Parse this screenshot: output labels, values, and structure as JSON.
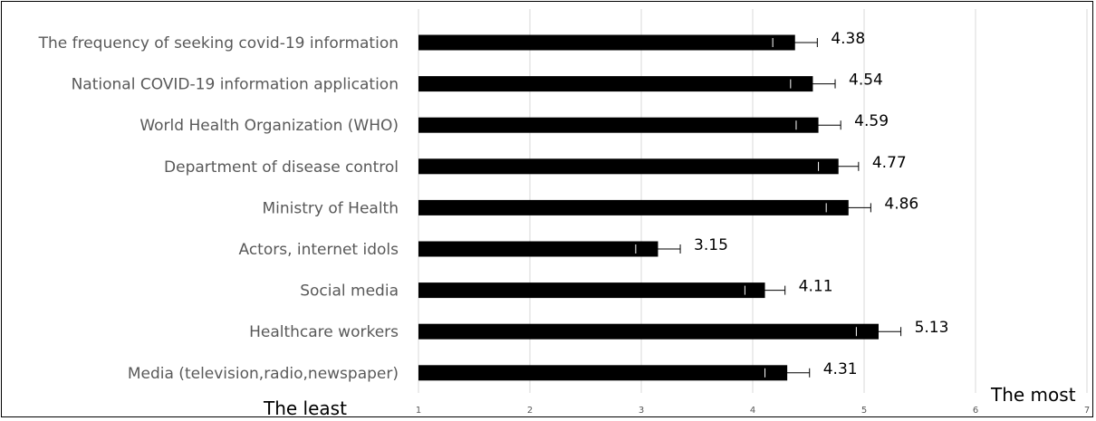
{
  "chart_data": {
    "type": "bar",
    "orientation": "horizontal",
    "categories": [
      "The frequency of seeking covid-19 information",
      "National COVID-19 information application",
      "World Health Organization (WHO)",
      "Department of disease control",
      "Ministry of Health",
      "Actors, internet idols",
      "Social media",
      "Healthcare workers",
      "Media (television,radio,newspaper)"
    ],
    "values": [
      4.38,
      4.54,
      4.59,
      4.77,
      4.86,
      3.15,
      4.11,
      5.13,
      4.31
    ],
    "value_labels": [
      "4.38",
      "4.54",
      "4.59",
      "4.77",
      "4.86",
      "3.15",
      "4.11",
      "5.13",
      "4.31"
    ],
    "errors": [
      0.2,
      0.2,
      0.2,
      0.18,
      0.2,
      0.2,
      0.18,
      0.2,
      0.2
    ],
    "xlim": [
      1,
      7
    ],
    "ticks": [
      1,
      2,
      3,
      4,
      5,
      6,
      7
    ],
    "tick_labels": [
      "1",
      "2",
      "3",
      "4",
      "5",
      "6",
      "7"
    ],
    "min_label": "The least",
    "max_label": "The most",
    "grid": "vertical",
    "title": "",
    "xlabel": "",
    "ylabel": "",
    "colors": {
      "bar": "#000000",
      "grid": "#d9d9d9",
      "text": "#595959"
    }
  }
}
